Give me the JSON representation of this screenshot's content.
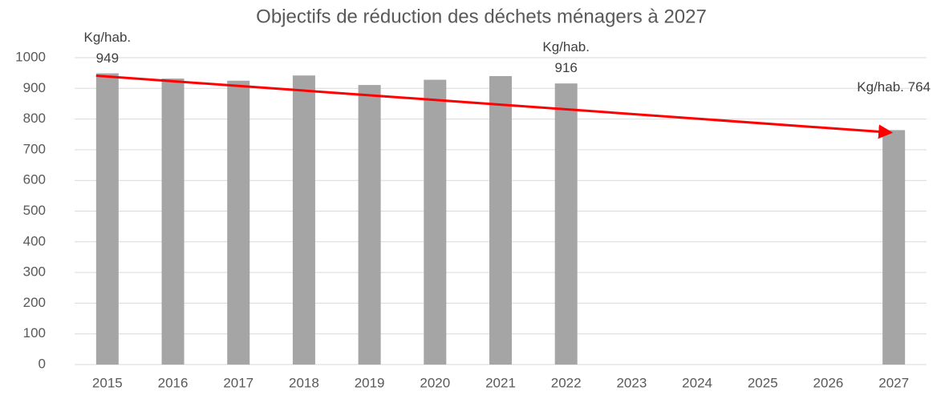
{
  "chart_data": {
    "type": "bar",
    "title": "Objectifs de réduction des déchets ménagers à 2027",
    "categories": [
      "2015",
      "2016",
      "2017",
      "2018",
      "2019",
      "2020",
      "2021",
      "2022",
      "2023",
      "2024",
      "2025",
      "2026",
      "2027"
    ],
    "values": [
      949,
      932,
      925,
      942,
      911,
      928,
      940,
      916,
      null,
      null,
      null,
      null,
      764
    ],
    "value_labels": [
      "Kg/hab. 949",
      null,
      null,
      null,
      null,
      null,
      null,
      "Kg/hab. 916",
      null,
      null,
      null,
      null,
      "Kg/hab. 764"
    ],
    "color": "#a5a5a5",
    "trend_color": "#ff0000",
    "ylim": [
      0,
      1000
    ],
    "yticks": [
      0,
      100,
      200,
      300,
      400,
      500,
      600,
      700,
      800,
      900,
      1000
    ],
    "grid": true
  }
}
